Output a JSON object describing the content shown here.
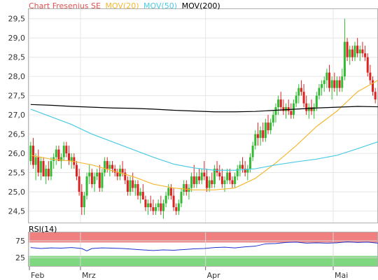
{
  "chart_data": [
    {
      "type": "candlestick",
      "title": "Chart Fresenius SE",
      "legend": [
        {
          "label": "MOV(20)",
          "color": "#f5b731"
        },
        {
          "label": "MOV(50)",
          "color": "#4ccbe3"
        },
        {
          "label": "MOV(200)",
          "color": "#000000"
        }
      ],
      "ylim": [
        24.2,
        29.75
      ],
      "yticks": [
        {
          "value": 24.5,
          "label": "24,5"
        },
        {
          "value": 25.0,
          "label": "25,0"
        },
        {
          "value": 25.5,
          "label": "25,5"
        },
        {
          "value": 26.0,
          "label": "26,0"
        },
        {
          "value": 26.5,
          "label": "26,5"
        },
        {
          "value": 27.0,
          "label": "27,0"
        },
        {
          "value": 27.5,
          "label": "27,5"
        },
        {
          "value": 28.0,
          "label": "28,0"
        },
        {
          "value": 28.5,
          "label": "28,5"
        },
        {
          "value": 29.0,
          "label": "29,0"
        },
        {
          "value": 29.5,
          "label": "29,5"
        }
      ],
      "xticks": [
        {
          "index": 0,
          "label": "Feb"
        },
        {
          "index": 20,
          "label": "Mrz"
        },
        {
          "index": 69,
          "label": "Apr"
        },
        {
          "index": 119,
          "label": "Mai"
        }
      ],
      "up_color": "#33bb33",
      "down_color": "#dd2222",
      "candles": [
        [
          25.8,
          26.3,
          25.7,
          26.2
        ],
        [
          26.2,
          26.4,
          25.6,
          25.7
        ],
        [
          25.7,
          26.0,
          25.3,
          25.9
        ],
        [
          25.9,
          26.1,
          25.4,
          25.5
        ],
        [
          25.5,
          25.9,
          25.3,
          25.8
        ],
        [
          25.8,
          25.9,
          25.4,
          25.4
        ],
        [
          25.4,
          25.7,
          25.2,
          25.6
        ],
        [
          25.6,
          25.8,
          25.3,
          25.4
        ],
        [
          25.4,
          25.9,
          25.3,
          25.8
        ],
        [
          25.8,
          26.0,
          25.6,
          25.9
        ],
        [
          25.9,
          26.2,
          25.7,
          26.1
        ],
        [
          26.1,
          26.2,
          25.8,
          25.8
        ],
        [
          25.8,
          26.0,
          25.6,
          25.9
        ],
        [
          25.9,
          26.3,
          25.8,
          26.2
        ],
        [
          26.2,
          26.3,
          25.9,
          26.0
        ],
        [
          26.0,
          26.2,
          25.7,
          25.8
        ],
        [
          25.8,
          26.0,
          25.6,
          25.9
        ],
        [
          25.9,
          26.0,
          25.6,
          25.7
        ],
        [
          25.7,
          25.8,
          25.3,
          25.4
        ],
        [
          25.4,
          25.6,
          24.9,
          25.0
        ],
        [
          25.0,
          25.2,
          24.4,
          24.6
        ],
        [
          24.6,
          25.0,
          24.4,
          24.9
        ],
        [
          24.9,
          25.5,
          24.8,
          25.4
        ],
        [
          25.4,
          25.7,
          25.2,
          25.5
        ],
        [
          25.5,
          25.6,
          25.1,
          25.2
        ],
        [
          25.2,
          25.5,
          25.0,
          25.4
        ],
        [
          25.4,
          25.6,
          25.3,
          25.5
        ],
        [
          25.5,
          25.7,
          25.0,
          25.1
        ],
        [
          25.1,
          25.6,
          25.0,
          25.5
        ],
        [
          25.5,
          25.9,
          25.4,
          25.8
        ],
        [
          25.8,
          25.9,
          25.5,
          25.6
        ],
        [
          25.6,
          25.8,
          25.4,
          25.7
        ],
        [
          25.7,
          25.8,
          25.5,
          25.6
        ],
        [
          25.6,
          25.7,
          25.4,
          25.5
        ],
        [
          25.5,
          25.6,
          25.3,
          25.4
        ],
        [
          25.4,
          25.7,
          25.3,
          25.6
        ],
        [
          25.6,
          25.8,
          25.4,
          25.5
        ],
        [
          25.5,
          25.6,
          25.2,
          25.3
        ],
        [
          25.3,
          25.4,
          24.9,
          25.0
        ],
        [
          25.0,
          25.4,
          24.9,
          25.3
        ],
        [
          25.3,
          25.5,
          25.0,
          25.1
        ],
        [
          25.1,
          25.3,
          24.9,
          25.2
        ],
        [
          25.2,
          25.3,
          24.8,
          24.9
        ],
        [
          24.9,
          25.1,
          24.7,
          25.0
        ],
        [
          25.0,
          25.2,
          24.8,
          24.8
        ],
        [
          24.8,
          24.9,
          24.5,
          24.6
        ],
        [
          24.6,
          24.8,
          24.4,
          24.7
        ],
        [
          24.7,
          24.9,
          24.5,
          24.6
        ],
        [
          24.6,
          24.8,
          24.4,
          24.5
        ],
        [
          24.5,
          24.7,
          24.4,
          24.6
        ],
        [
          24.6,
          24.8,
          24.5,
          24.7
        ],
        [
          24.7,
          24.9,
          24.4,
          24.5
        ],
        [
          24.5,
          24.8,
          24.3,
          24.7
        ],
        [
          24.7,
          25.0,
          24.6,
          24.9
        ],
        [
          24.9,
          25.2,
          24.8,
          25.1
        ],
        [
          25.1,
          25.2,
          24.8,
          24.9
        ],
        [
          24.9,
          25.1,
          24.5,
          24.6
        ],
        [
          24.6,
          24.7,
          24.4,
          24.5
        ],
        [
          24.5,
          24.8,
          24.4,
          24.7
        ],
        [
          24.7,
          25.1,
          24.6,
          25.0
        ],
        [
          25.0,
          25.3,
          24.9,
          25.2
        ],
        [
          25.2,
          25.3,
          24.9,
          25.0
        ],
        [
          25.0,
          25.2,
          24.8,
          25.1
        ],
        [
          25.1,
          25.5,
          25.0,
          25.4
        ],
        [
          25.4,
          25.7,
          25.1,
          25.2
        ],
        [
          25.2,
          25.5,
          25.1,
          25.4
        ],
        [
          25.4,
          25.6,
          25.2,
          25.3
        ],
        [
          25.3,
          25.6,
          25.2,
          25.5
        ],
        [
          25.5,
          25.8,
          25.3,
          25.4
        ],
        [
          25.4,
          25.6,
          25.0,
          25.1
        ],
        [
          25.1,
          25.4,
          25.0,
          25.3
        ],
        [
          25.3,
          25.5,
          25.1,
          25.2
        ],
        [
          25.2,
          25.7,
          25.1,
          25.6
        ],
        [
          25.6,
          25.8,
          25.4,
          25.5
        ],
        [
          25.5,
          25.7,
          25.3,
          25.4
        ],
        [
          25.4,
          25.6,
          25.1,
          25.2
        ],
        [
          25.2,
          25.4,
          25.0,
          25.3
        ],
        [
          25.3,
          25.6,
          25.2,
          25.5
        ],
        [
          25.5,
          25.6,
          25.2,
          25.3
        ],
        [
          25.3,
          25.4,
          25.1,
          25.2
        ],
        [
          25.2,
          25.5,
          25.1,
          25.4
        ],
        [
          25.4,
          25.7,
          25.3,
          25.6
        ],
        [
          25.6,
          25.8,
          25.4,
          25.7
        ],
        [
          25.7,
          25.9,
          25.5,
          25.6
        ],
        [
          25.6,
          25.8,
          25.4,
          25.5
        ],
        [
          25.5,
          25.7,
          25.3,
          25.6
        ],
        [
          25.6,
          26.0,
          25.5,
          25.9
        ],
        [
          25.9,
          26.3,
          25.8,
          26.2
        ],
        [
          26.2,
          26.6,
          26.1,
          26.5
        ],
        [
          26.5,
          26.8,
          26.2,
          26.4
        ],
        [
          26.4,
          26.7,
          26.2,
          26.6
        ],
        [
          26.6,
          26.8,
          26.3,
          26.4
        ],
        [
          26.4,
          26.9,
          26.3,
          26.8
        ],
        [
          26.8,
          27.0,
          26.5,
          26.6
        ],
        [
          26.6,
          26.9,
          26.5,
          26.8
        ],
        [
          26.8,
          27.1,
          26.7,
          27.0
        ],
        [
          27.0,
          27.3,
          26.8,
          27.2
        ],
        [
          27.2,
          27.5,
          27.0,
          27.4
        ],
        [
          27.4,
          27.6,
          27.1,
          27.2
        ],
        [
          27.2,
          27.4,
          27.0,
          27.1
        ],
        [
          27.1,
          27.3,
          26.9,
          27.2
        ],
        [
          27.2,
          27.4,
          27.0,
          27.1
        ],
        [
          27.1,
          27.3,
          26.9,
          27.0
        ],
        [
          27.0,
          27.4,
          26.9,
          27.3
        ],
        [
          27.3,
          27.6,
          27.2,
          27.5
        ],
        [
          27.5,
          27.8,
          27.3,
          27.7
        ],
        [
          27.7,
          27.9,
          27.5,
          27.6
        ],
        [
          27.6,
          27.8,
          27.2,
          27.3
        ],
        [
          27.3,
          27.5,
          27.0,
          27.1
        ],
        [
          27.1,
          27.3,
          26.9,
          27.2
        ],
        [
          27.2,
          27.4,
          27.0,
          27.1
        ],
        [
          27.1,
          27.3,
          26.9,
          27.2
        ],
        [
          27.2,
          27.6,
          27.1,
          27.5
        ],
        [
          27.5,
          27.8,
          27.4,
          27.7
        ],
        [
          27.7,
          27.9,
          27.5,
          27.8
        ],
        [
          27.8,
          28.0,
          27.6,
          27.9
        ],
        [
          27.9,
          28.2,
          27.7,
          28.1
        ],
        [
          28.1,
          28.3,
          27.6,
          27.7
        ],
        [
          27.7,
          28.0,
          27.4,
          27.9
        ],
        [
          27.9,
          28.1,
          27.6,
          27.7
        ],
        [
          27.7,
          28.0,
          27.5,
          27.9
        ],
        [
          27.9,
          28.0,
          27.6,
          27.7
        ],
        [
          27.7,
          28.2,
          27.6,
          28.0
        ],
        [
          28.0,
          29.5,
          27.9,
          28.9
        ],
        [
          28.9,
          29.0,
          28.4,
          28.5
        ],
        [
          28.5,
          28.8,
          28.3,
          28.7
        ],
        [
          28.7,
          28.8,
          28.4,
          28.5
        ],
        [
          28.5,
          28.9,
          28.4,
          28.8
        ],
        [
          28.8,
          29.0,
          28.5,
          28.6
        ],
        [
          28.6,
          28.8,
          28.4,
          28.7
        ],
        [
          28.7,
          28.9,
          28.5,
          28.6
        ],
        [
          28.6,
          28.8,
          28.4,
          28.5
        ],
        [
          28.5,
          28.6,
          28.0,
          28.1
        ],
        [
          28.1,
          28.3,
          27.8,
          27.9
        ],
        [
          27.9,
          28.0,
          27.5,
          27.6
        ],
        [
          27.6,
          27.7,
          27.3,
          27.4
        ]
      ],
      "mov20": [
        [
          0,
          25.95
        ],
        [
          8,
          25.85
        ],
        [
          16,
          25.8
        ],
        [
          24,
          25.7
        ],
        [
          32,
          25.55
        ],
        [
          40,
          25.4
        ],
        [
          48,
          25.2
        ],
        [
          56,
          25.1
        ],
        [
          64,
          25.05
        ],
        [
          72,
          25.05
        ],
        [
          80,
          25.1
        ],
        [
          88,
          25.35
        ],
        [
          96,
          25.75
        ],
        [
          104,
          26.2
        ],
        [
          112,
          26.7
        ],
        [
          120,
          27.1
        ],
        [
          128,
          27.6
        ],
        [
          136,
          27.9
        ],
        [
          143,
          28.0
        ]
      ],
      "mov50": [
        [
          0,
          27.15
        ],
        [
          8,
          26.95
        ],
        [
          16,
          26.75
        ],
        [
          24,
          26.5
        ],
        [
          32,
          26.3
        ],
        [
          40,
          26.1
        ],
        [
          48,
          25.9
        ],
        [
          56,
          25.72
        ],
        [
          64,
          25.62
        ],
        [
          72,
          25.56
        ],
        [
          80,
          25.56
        ],
        [
          88,
          25.6
        ],
        [
          96,
          25.7
        ],
        [
          104,
          25.78
        ],
        [
          112,
          25.85
        ],
        [
          120,
          25.95
        ],
        [
          128,
          26.12
        ],
        [
          136,
          26.3
        ],
        [
          143,
          26.45
        ]
      ],
      "mov200": [
        [
          0,
          27.27
        ],
        [
          8,
          27.25
        ],
        [
          16,
          27.22
        ],
        [
          24,
          27.2
        ],
        [
          32,
          27.18
        ],
        [
          40,
          27.17
        ],
        [
          48,
          27.15
        ],
        [
          56,
          27.12
        ],
        [
          64,
          27.1
        ],
        [
          72,
          27.08
        ],
        [
          80,
          27.08
        ],
        [
          88,
          27.09
        ],
        [
          96,
          27.12
        ],
        [
          104,
          27.15
        ],
        [
          112,
          27.18
        ],
        [
          120,
          27.2
        ],
        [
          128,
          27.22
        ],
        [
          136,
          27.21
        ],
        [
          143,
          27.2
        ]
      ]
    },
    {
      "type": "line",
      "title": "RSI(14)",
      "ylim": [
        0,
        100
      ],
      "yticks": [
        {
          "value": 25,
          "label": "25"
        },
        {
          "value": 75,
          "label": "75"
        }
      ],
      "overbought_band": [
        70,
        100
      ],
      "oversold_band": [
        0,
        30
      ],
      "band_colors": {
        "overbought": "#f07f7f",
        "oversold": "#7fd87f"
      },
      "line_color": "#1f33cc",
      "rsi": [
        [
          0,
          55
        ],
        [
          4,
          52
        ],
        [
          8,
          54
        ],
        [
          12,
          53
        ],
        [
          16,
          55
        ],
        [
          20,
          52
        ],
        [
          22,
          45
        ],
        [
          24,
          52
        ],
        [
          28,
          54
        ],
        [
          32,
          53
        ],
        [
          36,
          52
        ],
        [
          40,
          50
        ],
        [
          44,
          48
        ],
        [
          48,
          46
        ],
        [
          52,
          48
        ],
        [
          56,
          47
        ],
        [
          60,
          49
        ],
        [
          64,
          51
        ],
        [
          68,
          52
        ],
        [
          72,
          55
        ],
        [
          76,
          56
        ],
        [
          80,
          54
        ],
        [
          84,
          57
        ],
        [
          88,
          59
        ],
        [
          92,
          66
        ],
        [
          96,
          67
        ],
        [
          100,
          70
        ],
        [
          104,
          71
        ],
        [
          108,
          68
        ],
        [
          112,
          69
        ],
        [
          116,
          68
        ],
        [
          120,
          69
        ],
        [
          124,
          72
        ],
        [
          128,
          70
        ],
        [
          132,
          71
        ],
        [
          136,
          68
        ],
        [
          140,
          60
        ],
        [
          143,
          55
        ]
      ]
    }
  ]
}
